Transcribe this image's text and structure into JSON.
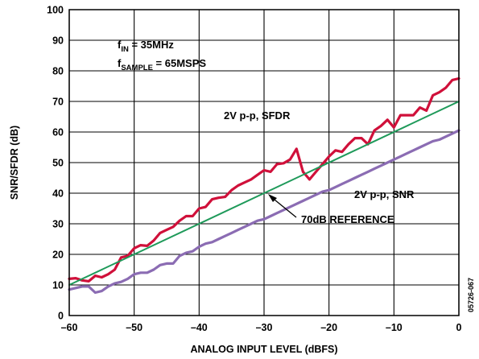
{
  "chart_data": {
    "type": "line",
    "xlabel": "ANALOG INPUT LEVEL (dBFS)",
    "ylabel": "SNR/SFDR (dB)",
    "xlim": [
      -60,
      0
    ],
    "ylim": [
      0,
      100
    ],
    "x_ticks": [
      -60,
      -50,
      -40,
      -30,
      -20,
      -10,
      0
    ],
    "y_ticks": [
      0,
      10,
      20,
      30,
      40,
      50,
      60,
      70,
      80,
      90,
      100
    ],
    "x_tick_labels": [
      "–60",
      "–50",
      "–40",
      "–30",
      "–20",
      "–10",
      "0"
    ],
    "y_tick_labels": [
      "0",
      "10",
      "20",
      "30",
      "40",
      "50",
      "60",
      "70",
      "80",
      "90",
      "100"
    ],
    "grid": true,
    "series": [
      {
        "name": "2V p-p, SFDR",
        "color": "#d0103a",
        "points": [
          [
            -60,
            12
          ],
          [
            -59,
            12.2
          ],
          [
            -58,
            11.5
          ],
          [
            -57,
            11.2
          ],
          [
            -56,
            13
          ],
          [
            -55,
            12.5
          ],
          [
            -54,
            13.5
          ],
          [
            -53,
            15
          ],
          [
            -52,
            19
          ],
          [
            -51,
            19.5
          ],
          [
            -50,
            22
          ],
          [
            -49,
            23
          ],
          [
            -48,
            22.8
          ],
          [
            -47,
            24.5
          ],
          [
            -46,
            27
          ],
          [
            -45,
            28
          ],
          [
            -44,
            29
          ],
          [
            -43,
            31
          ],
          [
            -42,
            32.5
          ],
          [
            -41,
            32.5
          ],
          [
            -40,
            35
          ],
          [
            -39,
            35.5
          ],
          [
            -38,
            38
          ],
          [
            -37,
            38.5
          ],
          [
            -36,
            38.8
          ],
          [
            -35,
            41
          ],
          [
            -34,
            42.5
          ],
          [
            -33,
            43.5
          ],
          [
            -32,
            44.5
          ],
          [
            -31,
            46
          ],
          [
            -30,
            47.5
          ],
          [
            -29,
            47
          ],
          [
            -28,
            49.5
          ],
          [
            -27,
            49.8
          ],
          [
            -26,
            51
          ],
          [
            -25,
            54.5
          ],
          [
            -24,
            47
          ],
          [
            -23,
            44.5
          ],
          [
            -22,
            47
          ],
          [
            -21,
            49.5
          ],
          [
            -20,
            52
          ],
          [
            -19,
            54
          ],
          [
            -18,
            53.5
          ],
          [
            -17,
            56
          ],
          [
            -16,
            58
          ],
          [
            -15,
            58
          ],
          [
            -14,
            56
          ],
          [
            -13,
            60.5
          ],
          [
            -12,
            62
          ],
          [
            -11,
            64
          ],
          [
            -10,
            61.5
          ],
          [
            -9,
            65.5
          ],
          [
            -8,
            65.5
          ],
          [
            -7,
            65.5
          ],
          [
            -6,
            68
          ],
          [
            -5,
            67
          ],
          [
            -4,
            72
          ],
          [
            -3,
            73
          ],
          [
            -2,
            74.5
          ],
          [
            -1,
            77
          ],
          [
            0,
            77.5
          ]
        ]
      },
      {
        "name": "2V p-p, SNR",
        "color": "#8b6cb3",
        "points": [
          [
            -60,
            8.5
          ],
          [
            -59,
            9
          ],
          [
            -58,
            9.5
          ],
          [
            -57,
            9.5
          ],
          [
            -56,
            7.5
          ],
          [
            -55,
            8
          ],
          [
            -54,
            9.5
          ],
          [
            -53,
            10.5
          ],
          [
            -52,
            11
          ],
          [
            -51,
            12
          ],
          [
            -50,
            13.5
          ],
          [
            -49,
            14
          ],
          [
            -48,
            14
          ],
          [
            -47,
            15
          ],
          [
            -46,
            16.5
          ],
          [
            -45,
            17
          ],
          [
            -44,
            17
          ],
          [
            -43,
            19.5
          ],
          [
            -42,
            20.5
          ],
          [
            -41,
            21
          ],
          [
            -40,
            22.5
          ],
          [
            -39,
            23.5
          ],
          [
            -38,
            24
          ],
          [
            -37,
            25
          ],
          [
            -36,
            26
          ],
          [
            -35,
            27
          ],
          [
            -34,
            28
          ],
          [
            -33,
            29
          ],
          [
            -32,
            30
          ],
          [
            -31,
            31
          ],
          [
            -30,
            31.5
          ],
          [
            -29,
            32.5
          ],
          [
            -28,
            33.5
          ],
          [
            -27,
            34.5
          ],
          [
            -26,
            35.5
          ],
          [
            -25,
            36.5
          ],
          [
            -24,
            37.5
          ],
          [
            -23,
            38.5
          ],
          [
            -22,
            39.5
          ],
          [
            -21,
            40.5
          ],
          [
            -20,
            41
          ],
          [
            -19,
            42
          ],
          [
            -18,
            43
          ],
          [
            -17,
            44
          ],
          [
            -16,
            45
          ],
          [
            -15,
            46
          ],
          [
            -14,
            47
          ],
          [
            -13,
            48
          ],
          [
            -12,
            49
          ],
          [
            -11,
            50
          ],
          [
            -10,
            51
          ],
          [
            -9,
            52
          ],
          [
            -8,
            53
          ],
          [
            -7,
            54
          ],
          [
            -6,
            55
          ],
          [
            -5,
            56
          ],
          [
            -4,
            57
          ],
          [
            -3,
            57.5
          ],
          [
            -2,
            58.5
          ],
          [
            -1,
            59.5
          ],
          [
            0,
            60.5
          ]
        ]
      },
      {
        "name": "70dB REFERENCE",
        "color": "#1f9a5a",
        "points": [
          [
            -60,
            10
          ],
          [
            0,
            70
          ]
        ]
      }
    ],
    "annotations": {
      "condition_line1_main": "f",
      "condition_line1_sub": "IN",
      "condition_line1_rest": " = 35MHz",
      "condition_line2_main": "f",
      "condition_line2_sub": "SAMPLE",
      "condition_line2_rest": " = 65MSPS",
      "sfdr_label": "2V p-p, SFDR",
      "snr_label": "2V p-p, SNR",
      "reference_label": "70dB REFERENCE",
      "figure_id": "05726-067"
    }
  }
}
